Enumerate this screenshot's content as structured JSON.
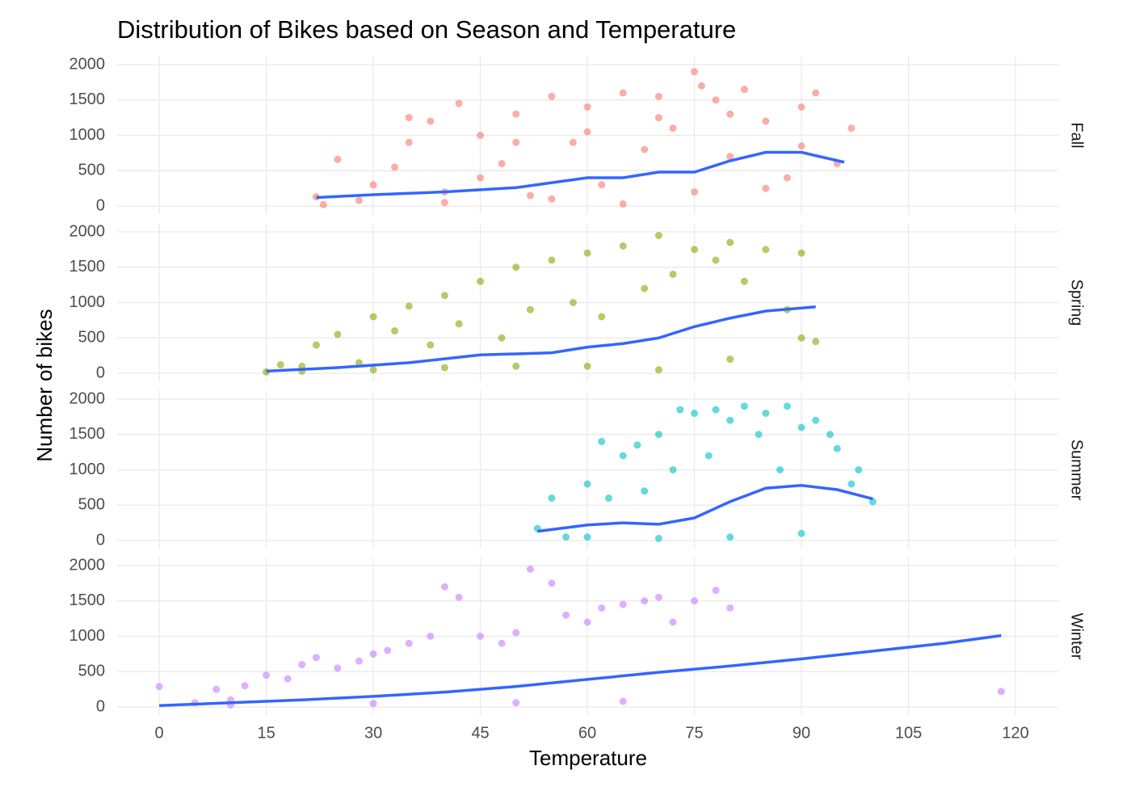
{
  "chart_data": {
    "type": "scatter",
    "title": "Distribution of Bikes based on Season and Temperature",
    "x_label": "Temperature",
    "y_label": "Number of bikes",
    "xlim": [
      -5.9,
      126
    ],
    "xticks": [
      0,
      15,
      30,
      45,
      60,
      75,
      90,
      105,
      120
    ],
    "ylim": [
      -114,
      2114
    ],
    "yticks": [
      0,
      500,
      1000,
      1500,
      2000
    ],
    "grid": true,
    "trend_color": "#3366FF",
    "series": [
      {
        "name": "Fall",
        "color": "#F8766D",
        "x": [
          22,
          25,
          28,
          30,
          33,
          35,
          38,
          40,
          42,
          45,
          48,
          50,
          52,
          55,
          58,
          60,
          62,
          65,
          68,
          70,
          72,
          75,
          78,
          80,
          82,
          85,
          88,
          90,
          92,
          95,
          97,
          23,
          40,
          55,
          65,
          75,
          85,
          35,
          50,
          60,
          70,
          80,
          90,
          76,
          45
        ],
        "values": [
          130,
          660,
          80,
          300,
          550,
          900,
          1200,
          200,
          1450,
          1000,
          600,
          1300,
          150,
          1550,
          900,
          1400,
          300,
          1600,
          800,
          1550,
          1100,
          1900,
          1500,
          700,
          1650,
          1200,
          400,
          1400,
          1600,
          600,
          1100,
          20,
          50,
          100,
          30,
          200,
          250,
          1250,
          900,
          1050,
          1250,
          1300,
          850,
          1700,
          400
        ],
        "trend_x": [
          22,
          30,
          40,
          50,
          60,
          65,
          70,
          75,
          80,
          85,
          90,
          96
        ],
        "trend_values": [
          120,
          160,
          200,
          260,
          400,
          400,
          480,
          480,
          640,
          760,
          760,
          620
        ]
      },
      {
        "name": "Spring",
        "color": "#7CAE00",
        "x": [
          15,
          17,
          20,
          22,
          25,
          28,
          30,
          33,
          35,
          38,
          40,
          42,
          45,
          48,
          50,
          52,
          55,
          58,
          60,
          62,
          65,
          68,
          70,
          72,
          75,
          78,
          80,
          82,
          85,
          88,
          90,
          92,
          20,
          30,
          40,
          50,
          60,
          70,
          80,
          90
        ],
        "values": [
          20,
          120,
          100,
          400,
          550,
          150,
          800,
          600,
          950,
          400,
          1100,
          700,
          1300,
          500,
          1500,
          900,
          1600,
          1000,
          1700,
          800,
          1800,
          1200,
          1950,
          1400,
          1750,
          1600,
          1850,
          1300,
          1750,
          900,
          1700,
          450,
          30,
          50,
          80,
          100,
          100,
          50,
          200,
          500
        ],
        "trend_x": [
          15,
          25,
          35,
          45,
          55,
          60,
          65,
          70,
          75,
          80,
          85,
          92
        ],
        "trend_values": [
          30,
          80,
          150,
          260,
          290,
          370,
          420,
          500,
          660,
          780,
          880,
          940
        ]
      },
      {
        "name": "Summer",
        "color": "#00BFC4",
        "x": [
          53,
          55,
          57,
          60,
          62,
          63,
          65,
          67,
          68,
          70,
          72,
          73,
          75,
          77,
          78,
          80,
          82,
          84,
          85,
          87,
          88,
          90,
          92,
          94,
          95,
          97,
          98,
          100,
          60,
          70,
          80,
          90
        ],
        "values": [
          170,
          600,
          50,
          800,
          1400,
          600,
          1200,
          1350,
          700,
          1500,
          1000,
          1850,
          1800,
          1200,
          1850,
          1700,
          1900,
          1500,
          1800,
          1000,
          1900,
          1600,
          1700,
          1500,
          1300,
          800,
          1000,
          550,
          50,
          30,
          50,
          100
        ],
        "trend_x": [
          53,
          60,
          65,
          70,
          75,
          80,
          85,
          90,
          95,
          100
        ],
        "trend_values": [
          130,
          220,
          250,
          230,
          320,
          550,
          740,
          780,
          720,
          590
        ]
      },
      {
        "name": "Winter",
        "color": "#C77CFF",
        "x": [
          0,
          5,
          8,
          10,
          12,
          15,
          18,
          20,
          22,
          25,
          28,
          30,
          32,
          35,
          38,
          40,
          42,
          45,
          48,
          50,
          52,
          55,
          57,
          60,
          62,
          65,
          68,
          70,
          72,
          75,
          78,
          80,
          118,
          10,
          30,
          50,
          65
        ],
        "values": [
          290,
          60,
          250,
          100,
          300,
          450,
          400,
          600,
          700,
          550,
          650,
          750,
          800,
          900,
          1000,
          1700,
          1550,
          1000,
          900,
          1050,
          1950,
          1750,
          1300,
          1200,
          1400,
          1450,
          1500,
          1550,
          1200,
          1500,
          1650,
          1400,
          220,
          30,
          50,
          60,
          80
        ],
        "trend_x": [
          0,
          10,
          20,
          30,
          40,
          50,
          60,
          70,
          80,
          90,
          100,
          110,
          118
        ],
        "trend_values": [
          20,
          60,
          100,
          150,
          210,
          290,
          390,
          490,
          580,
          680,
          790,
          900,
          1010
        ]
      }
    ]
  }
}
